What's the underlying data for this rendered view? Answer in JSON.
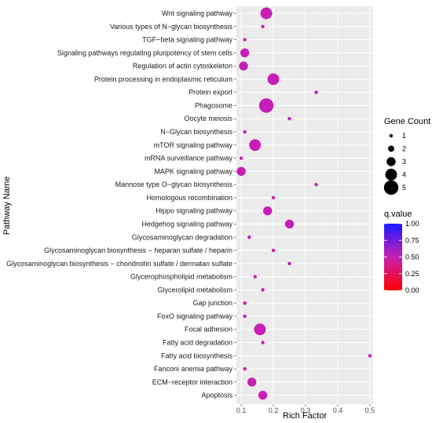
{
  "chart_data": {
    "type": "scatter",
    "xlabel": "Rich Factor",
    "ylabel": "Pathway Name",
    "xlim": [
      0.085,
      0.51
    ],
    "xticks": [
      "0.1",
      "0.2",
      "0.3",
      "0.4",
      "0.5"
    ],
    "xtick_values": [
      0.1,
      0.2,
      0.3,
      0.4,
      0.5
    ],
    "grid": true,
    "legend_placement": "right",
    "panel_color": "#ebebeb",
    "points": [
      {
        "pathway": "Wnt signaling pathway",
        "x": 0.178,
        "count": 4,
        "q": 0.5
      },
      {
        "pathway": "Various types of N−glycan biosynthesis",
        "x": 0.167,
        "count": 1,
        "q": 0.5
      },
      {
        "pathway": "TGF−beta signaling pathway",
        "x": 0.111,
        "count": 1,
        "q": 0.5
      },
      {
        "pathway": "Signaling pathways regulating pluripotency of stem cells",
        "x": 0.111,
        "count": 3,
        "q": 0.5
      },
      {
        "pathway": "Regulation of actin cytoskeleton",
        "x": 0.107,
        "count": 3,
        "q": 0.5
      },
      {
        "pathway": "Protein processing in endoplasmic reticulum",
        "x": 0.2,
        "count": 4,
        "q": 0.5
      },
      {
        "pathway": "Protein export",
        "x": 0.333,
        "count": 1,
        "q": 0.5
      },
      {
        "pathway": "Phagosome",
        "x": 0.178,
        "count": 5,
        "q": 0.5
      },
      {
        "pathway": "Oocyte meiosis",
        "x": 0.25,
        "count": 1,
        "q": 0.5
      },
      {
        "pathway": "N−Glycan biosynthesis",
        "x": 0.111,
        "count": 1,
        "q": 0.5
      },
      {
        "pathway": "mTOR signaling pathway",
        "x": 0.143,
        "count": 4,
        "q": 0.5
      },
      {
        "pathway": "mRNA surveillance pathway",
        "x": 0.1,
        "count": 1,
        "q": 0.5
      },
      {
        "pathway": "MAPK signaling pathway",
        "x": 0.1,
        "count": 3,
        "q": 0.5
      },
      {
        "pathway": "Mannose type O−glycan biosynthesis",
        "x": 0.333,
        "count": 1,
        "q": 0.5
      },
      {
        "pathway": "Homologous recombination",
        "x": 0.2,
        "count": 1,
        "q": 0.5
      },
      {
        "pathway": "Hippo signaling pathway",
        "x": 0.182,
        "count": 3,
        "q": 0.5
      },
      {
        "pathway": "Hedgehog signaling pathway",
        "x": 0.25,
        "count": 3,
        "q": 0.5
      },
      {
        "pathway": "Glycosaminoglycan degradation",
        "x": 0.125,
        "count": 1,
        "q": 0.5
      },
      {
        "pathway": "Glycosaminoglycan biosynthesis − heparan sulfate / heparin",
        "x": 0.2,
        "count": 1,
        "q": 0.5
      },
      {
        "pathway": "Glycosaminoglycan biosynthesis − chondroitin sulfate / dermatan sulfate",
        "x": 0.25,
        "count": 1,
        "q": 0.5
      },
      {
        "pathway": "Glycerophospholipid metabolism",
        "x": 0.143,
        "count": 1,
        "q": 0.5
      },
      {
        "pathway": "Glycerolipid metabolism",
        "x": 0.167,
        "count": 1,
        "q": 0.5
      },
      {
        "pathway": "Gap junction",
        "x": 0.111,
        "count": 1,
        "q": 0.5
      },
      {
        "pathway": "FoxO signaling pathway",
        "x": 0.111,
        "count": 1,
        "q": 0.5
      },
      {
        "pathway": "Focal adhesion",
        "x": 0.158,
        "count": 4,
        "q": 0.5
      },
      {
        "pathway": "Fatty acid degradation",
        "x": 0.167,
        "count": 1,
        "q": 0.5
      },
      {
        "pathway": "Fatty acid biosynthesis",
        "x": 0.5,
        "count": 1,
        "q": 0.5
      },
      {
        "pathway": "Fanconi anemia pathway",
        "x": 0.111,
        "count": 1,
        "q": 0.5
      },
      {
        "pathway": "ECM−receptor interaction",
        "x": 0.133,
        "count": 3,
        "q": 0.5
      },
      {
        "pathway": "Apoptosis",
        "x": 0.167,
        "count": 3,
        "q": 0.5
      }
    ],
    "size_legend": {
      "title": "Gene Count",
      "values": [
        1,
        2,
        3,
        4,
        5
      ],
      "labels": [
        "1",
        "2",
        "3",
        "4",
        "5"
      ]
    },
    "color_legend": {
      "title": "q.value",
      "range": [
        0.0,
        1.0
      ],
      "ticks": [
        "0.00",
        "0.25",
        "0.50",
        "0.75",
        "1.00"
      ],
      "tick_values": [
        0.0,
        0.25,
        0.5,
        0.75,
        1.0
      ],
      "low_color": "#ff0000",
      "high_color": "#0000ff",
      "point_color": "#c71fb5"
    }
  }
}
